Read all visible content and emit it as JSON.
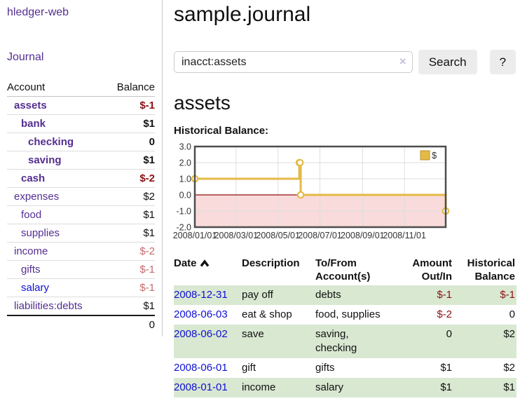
{
  "sidebar": {
    "brand": "hledger-web",
    "nav_journal": "Journal",
    "accounts_table": {
      "headers": {
        "account": "Account",
        "balance": "Balance"
      },
      "rows": [
        {
          "name": "assets",
          "depth": 1,
          "bold": true,
          "balance": "$-1",
          "balance_class": "neg-strong"
        },
        {
          "name": "bank",
          "depth": 2,
          "bold": true,
          "balance": "$1",
          "balance_class": "pos-strong"
        },
        {
          "name": "checking",
          "depth": 3,
          "bold": true,
          "balance": "0",
          "balance_class": "pos-strong"
        },
        {
          "name": "saving",
          "depth": 3,
          "bold": true,
          "balance": "$1",
          "balance_class": "pos-strong"
        },
        {
          "name": "cash",
          "depth": 2,
          "bold": true,
          "balance": "$-2",
          "balance_class": "neg-strong"
        },
        {
          "name": "expenses",
          "depth": 1,
          "bold": false,
          "balance": "$2",
          "balance_class": "pos"
        },
        {
          "name": "food",
          "depth": 2,
          "bold": false,
          "balance": "$1",
          "balance_class": "pos"
        },
        {
          "name": "supplies",
          "depth": 2,
          "bold": false,
          "balance": "$1",
          "balance_class": "pos"
        },
        {
          "name": "income",
          "depth": 1,
          "bold": false,
          "balance": "$-2",
          "balance_class": "neg-dim"
        },
        {
          "name": "gifts",
          "depth": 2,
          "bold": false,
          "balance": "$-1",
          "balance_class": "neg-dim"
        },
        {
          "name": "salary",
          "depth": 2,
          "bold": false,
          "unvisited": true,
          "balance": "$-1",
          "balance_class": "neg-dim"
        },
        {
          "name": "liabilities:debts",
          "depth": 1,
          "bold": false,
          "balance": "$1",
          "balance_class": "pos"
        }
      ],
      "total": "0"
    }
  },
  "header": {
    "title": "sample.journal"
  },
  "search": {
    "value": "inacct:assets",
    "clear_icon": "×",
    "button": "Search",
    "help_button": "?"
  },
  "account_page": {
    "heading": "assets",
    "chart_label": "Historical Balance:"
  },
  "chart_data": {
    "type": "line",
    "title": "Historical Balance",
    "step": true,
    "series": [
      {
        "name": "$",
        "color": "#e4ba46",
        "points": [
          {
            "date": "2008-01-01",
            "day": 0,
            "value": 1
          },
          {
            "date": "2008-06-01",
            "day": 152,
            "value": 2
          },
          {
            "date": "2008-06-02",
            "day": 153,
            "value": 2
          },
          {
            "date": "2008-06-03",
            "day": 154,
            "value": 0
          },
          {
            "date": "2008-12-31",
            "day": 365,
            "value": -1
          }
        ]
      }
    ],
    "x_range_days": [
      0,
      365
    ],
    "y_range": [
      -2,
      3
    ],
    "y_ticks": [
      {
        "value": 3,
        "label": "3.0"
      },
      {
        "value": 2,
        "label": "2.0"
      },
      {
        "value": 1,
        "label": "1.0"
      },
      {
        "value": 0,
        "label": "0.0"
      },
      {
        "value": -1,
        "label": "-1.0"
      },
      {
        "value": -2,
        "label": "-2.0"
      }
    ],
    "x_ticks": [
      {
        "day": 0,
        "label": "2008/01/01"
      },
      {
        "day": 60,
        "label": "2008/03/01"
      },
      {
        "day": 121,
        "label": "2008/05/01"
      },
      {
        "day": 182,
        "label": "2008/07/01"
      },
      {
        "day": 244,
        "label": "2008/09/01"
      },
      {
        "day": 305,
        "label": "2008/11/01"
      }
    ],
    "legend": {
      "label": "$",
      "position": "top-right"
    },
    "grid": true,
    "negative_region_fill": "#f9dbdb",
    "zero_line_color": "#8f0e0e",
    "border_color": "#4d4d4d",
    "grid_color": "#dedede",
    "marker_fill": "#ffffff"
  },
  "register_table": {
    "columns": {
      "date": "Date",
      "description": "Description",
      "tofrom": "To/From Account(s)",
      "amount": "Amount Out/In",
      "balance": "Historical Balance"
    },
    "rows": [
      {
        "date": "2008-12-31",
        "description": "pay off",
        "accounts": "debts",
        "amount": "$-1",
        "amount_neg": true,
        "balance": "$-1",
        "balance_neg": true
      },
      {
        "date": "2008-06-03",
        "description": "eat & shop",
        "accounts": "food, supplies",
        "amount": "$-2",
        "amount_neg": true,
        "balance": "0",
        "balance_neg": false
      },
      {
        "date": "2008-06-02",
        "description": "save",
        "accounts": "saving, checking",
        "amount": "0",
        "amount_neg": false,
        "balance": "$2",
        "balance_neg": false
      },
      {
        "date": "2008-06-01",
        "description": "gift",
        "accounts": "gifts",
        "amount": "$1",
        "amount_neg": false,
        "balance": "$2",
        "balance_neg": false
      },
      {
        "date": "2008-01-01",
        "description": "income",
        "accounts": "salary",
        "amount": "$1",
        "amount_neg": false,
        "balance": "$1",
        "balance_neg": false
      }
    ]
  },
  "colors": {
    "link_purple": "#542e91",
    "link_blue": "#0f10d6",
    "negative_strong": "#8c1115",
    "negative_dim": "#c46b6b",
    "stripe_green": "#d9e8d1",
    "chart_gold": "#e4ba46",
    "button_gray": "#ececec"
  }
}
